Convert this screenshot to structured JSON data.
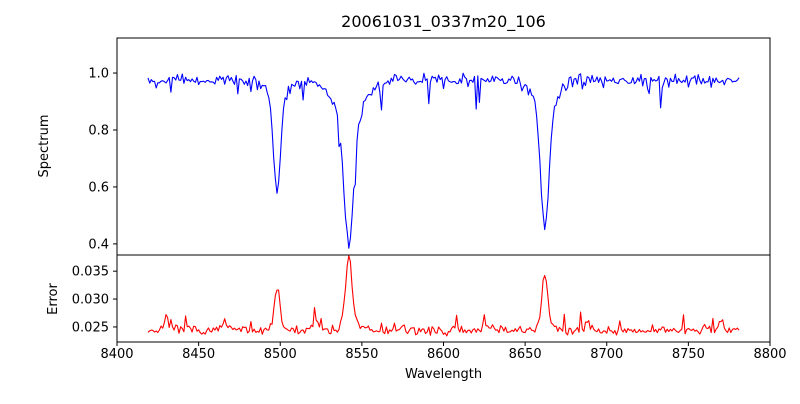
{
  "figure_title": "20061031_0337m20_106",
  "chart_data": [
    {
      "type": "line",
      "title": "20061031_0337m20_106",
      "xlabel": "Wavelength",
      "ylabel": "Spectrum",
      "xlim": [
        8400,
        8800
      ],
      "ylim": [
        0.361,
        1.123
      ],
      "grid": false,
      "legend": "none",
      "x_ticks": [
        8400,
        8450,
        8500,
        8550,
        8600,
        8650,
        8700,
        8750,
        8800
      ],
      "y_ticks": [
        {
          "v": 0.4,
          "label": "0.4"
        },
        {
          "v": 0.6,
          "label": "0.6"
        },
        {
          "v": 0.8,
          "label": "0.8"
        },
        {
          "v": 1.0,
          "label": "1.0"
        }
      ],
      "series": [
        {
          "name": "spectrum",
          "color": "#0000ff",
          "mode": "absorption",
          "x_start": 8419,
          "x_end": 8781,
          "x_step": 1,
          "continuum_baseline": 1.0,
          "baseline": 0.975,
          "noise": 0.03,
          "spike_prob": 0.07,
          "spike_amp": 0.05,
          "seed": 42,
          "lines": [
            {
              "center": 8498.0,
              "min_flux": 0.59,
              "components": [
                {
                  "sigma": 2.2,
                  "amp": 0.33
                },
                {
                  "sigma": 6.0,
                  "amp": 0.06
                }
              ]
            },
            {
              "center": 8542.1,
              "min_flux": 0.4,
              "components": [
                {
                  "sigma": 3.0,
                  "amp": 0.45
                },
                {
                  "sigma": 9.0,
                  "amp": 0.13
                }
              ]
            },
            {
              "center": 8662.1,
              "min_flux": 0.46,
              "components": [
                {
                  "sigma": 2.5,
                  "amp": 0.42
                },
                {
                  "sigma": 7.0,
                  "amp": 0.1
                }
              ]
            }
          ]
        }
      ]
    },
    {
      "type": "line",
      "title": "",
      "xlabel": "Wavelength",
      "ylabel": "Error",
      "xlim": [
        8400,
        8800
      ],
      "ylim": [
        0.0223,
        0.0379
      ],
      "grid": false,
      "legend": "none",
      "x_ticks": [
        8400,
        8450,
        8500,
        8550,
        8600,
        8650,
        8700,
        8750,
        8800
      ],
      "y_ticks": [
        {
          "v": 0.025,
          "label": "0.025"
        },
        {
          "v": 0.03,
          "label": "0.030"
        },
        {
          "v": 0.035,
          "label": "0.035"
        }
      ],
      "series": [
        {
          "name": "error",
          "color": "#ff0000",
          "mode": "emission",
          "x_start": 8419,
          "x_end": 8781,
          "x_step": 1,
          "baseline": 0.0244,
          "noise": 0.0012,
          "spike_prob": 0.06,
          "spike_amp": 0.0015,
          "seed": 7,
          "lines": [
            {
              "center": 8430.0,
              "peak": 0.0275,
              "components": [
                {
                  "sigma": 1.2,
                  "amp": 0.003
                }
              ]
            },
            {
              "center": 8466.0,
              "peak": 0.0262,
              "components": [
                {
                  "sigma": 1.2,
                  "amp": 0.0018
                }
              ]
            },
            {
              "center": 8498.0,
              "peak": 0.0315,
              "components": [
                {
                  "sigma": 1.5,
                  "amp": 0.0068
                },
                {
                  "sigma": 4.0,
                  "amp": 0.001
                }
              ]
            },
            {
              "center": 8522.0,
              "peak": 0.0261,
              "components": [
                {
                  "sigma": 1.5,
                  "amp": 0.0017
                }
              ]
            },
            {
              "center": 8542.1,
              "peak": 0.0378,
              "components": [
                {
                  "sigma": 1.8,
                  "amp": 0.0125
                },
                {
                  "sigma": 5.0,
                  "amp": 0.0015
                }
              ]
            },
            {
              "center": 8662.1,
              "peak": 0.034,
              "components": [
                {
                  "sigma": 1.6,
                  "amp": 0.009
                },
                {
                  "sigma": 4.0,
                  "amp": 0.0012
                }
              ]
            },
            {
              "center": 8688.0,
              "peak": 0.0259,
              "components": [
                {
                  "sigma": 1.2,
                  "amp": 0.0015
                }
              ]
            },
            {
              "center": 8760.0,
              "peak": 0.0256,
              "components": [
                {
                  "sigma": 1.5,
                  "amp": 0.0012
                }
              ]
            },
            {
              "center": 8770.0,
              "peak": 0.0266,
              "components": [
                {
                  "sigma": 1.2,
                  "amp": 0.0022
                }
              ]
            }
          ]
        }
      ]
    }
  ]
}
